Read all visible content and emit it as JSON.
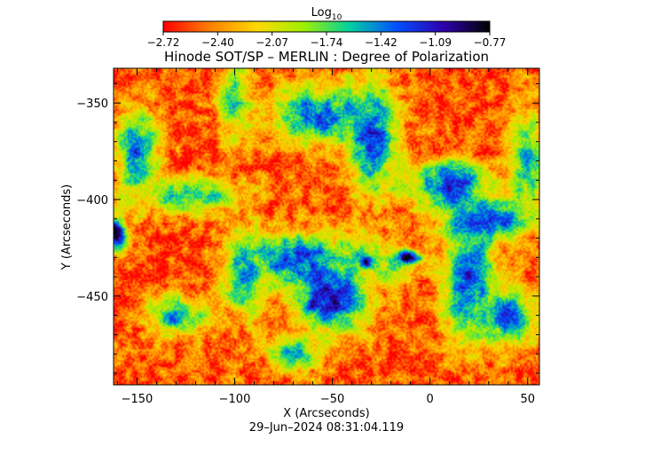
{
  "chart_data": {
    "type": "heatmap",
    "title": "Hinode SOT/SP – MERLIN : Degree of Polarization",
    "xlabel": "X (Arcseconds)",
    "ylabel": "Y (Arcseconds)",
    "xlim": [
      -162,
      56
    ],
    "ylim": [
      -496,
      -332
    ],
    "x_ticks": [
      -150,
      -100,
      -50,
      0,
      50
    ],
    "y_ticks": [
      -350,
      -400,
      -450
    ],
    "x_tick_labels": [
      "−150",
      "−100",
      "−50",
      "0",
      "50"
    ],
    "y_tick_labels": [
      "−350",
      "−400",
      "−450"
    ],
    "colorbar": {
      "label_base": "Log",
      "label_sub": "10",
      "range": [
        -2.72,
        -0.77
      ],
      "tick_labels": [
        "−2.72",
        "−2.40",
        "−2.07",
        "−1.74",
        "−1.42",
        "−1.09",
        "−0.77"
      ],
      "colors": [
        "#ff0000",
        "#ff8000",
        "#ffd800",
        "#a0f000",
        "#00d0a0",
        "#0050ff",
        "#3000b0",
        "#000000"
      ]
    },
    "timestamp": "29–Jun–2024 08:31:04.119",
    "regions": [
      {
        "kind": "base",
        "value": -2.55
      },
      {
        "kind": "blob",
        "x": -100,
        "y": -348,
        "rx": 8,
        "ry": 20,
        "value": -1.7
      },
      {
        "kind": "blob",
        "x": -58,
        "y": -356,
        "rx": 22,
        "ry": 14,
        "value": -1.3
      },
      {
        "kind": "blob",
        "x": -30,
        "y": -368,
        "rx": 12,
        "ry": 28,
        "value": -1.25
      },
      {
        "kind": "blob",
        "x": 10,
        "y": -392,
        "rx": 20,
        "ry": 12,
        "value": -1.3
      },
      {
        "kind": "blob",
        "x": 30,
        "y": -410,
        "rx": 20,
        "ry": 10,
        "value": -1.2
      },
      {
        "kind": "blob",
        "x": -120,
        "y": -398,
        "rx": 25,
        "ry": 9,
        "value": -1.6
      },
      {
        "kind": "blob",
        "x": -150,
        "y": -375,
        "rx": 10,
        "ry": 22,
        "value": -1.4
      },
      {
        "kind": "blob",
        "x": -70,
        "y": -430,
        "rx": 25,
        "ry": 12,
        "value": -1.3
      },
      {
        "kind": "blob",
        "x": -50,
        "y": -450,
        "rx": 18,
        "ry": 18,
        "value": -1.1
      },
      {
        "kind": "blob",
        "x": -35,
        "y": -428,
        "rx": 12,
        "ry": 10,
        "value": -1.8
      },
      {
        "kind": "blob",
        "x": -20,
        "y": -435,
        "rx": 14,
        "ry": 8,
        "value": -1.9
      },
      {
        "kind": "blob",
        "x": 20,
        "y": -440,
        "rx": 12,
        "ry": 30,
        "value": -1.2
      },
      {
        "kind": "blob",
        "x": 40,
        "y": -460,
        "rx": 15,
        "ry": 15,
        "value": -1.4
      },
      {
        "kind": "blob",
        "x": -130,
        "y": -460,
        "rx": 15,
        "ry": 10,
        "value": -1.5
      },
      {
        "kind": "blob",
        "x": -95,
        "y": -440,
        "rx": 10,
        "ry": 20,
        "value": -1.55
      },
      {
        "kind": "blob",
        "x": 50,
        "y": -380,
        "rx": 8,
        "ry": 25,
        "value": -1.5
      },
      {
        "kind": "blob",
        "x": -70,
        "y": -480,
        "rx": 12,
        "ry": 8,
        "value": -1.5
      },
      {
        "kind": "core",
        "x": -161,
        "y": -418,
        "rx": 6,
        "ry": 9,
        "value": -0.85
      },
      {
        "kind": "core",
        "x": -11,
        "y": -430,
        "rx": 6,
        "ry": 4,
        "value": -0.8
      },
      {
        "kind": "core",
        "x": -33,
        "y": -432,
        "rx": 3,
        "ry": 3,
        "value": -0.85
      },
      {
        "kind": "core",
        "x": -60,
        "y": -455,
        "rx": 3,
        "ry": 3,
        "value": -0.95
      }
    ]
  }
}
